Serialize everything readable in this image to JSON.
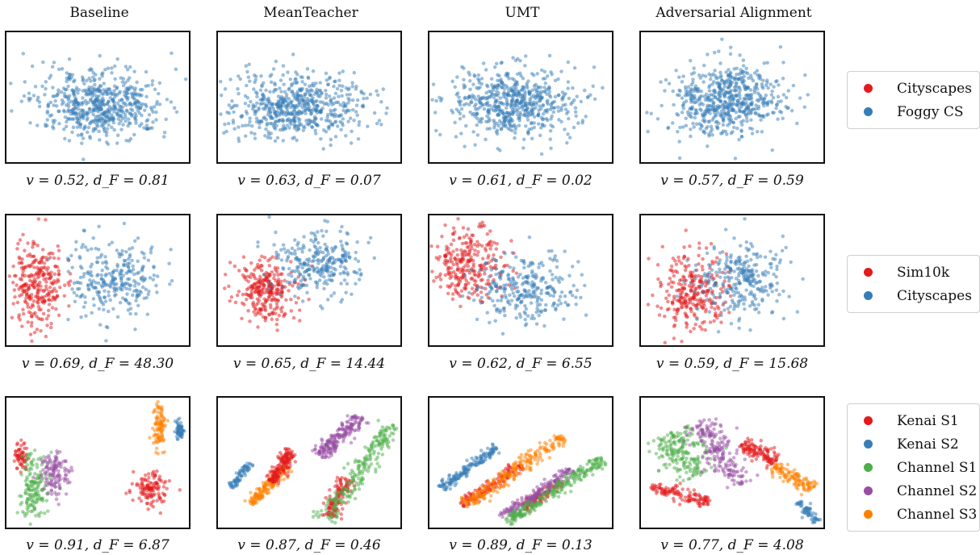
{
  "columns": [
    "Baseline",
    "MeanTeacher",
    "UMT",
    "Adversarial Alignment"
  ],
  "rows": [
    {
      "legend": [
        {
          "name": "Cityscapes",
          "color": "#e41a1c"
        },
        {
          "name": "Foggy CS",
          "color": "#377eb8"
        }
      ],
      "captions": [
        "v = 0.52, d_F = 0.81",
        "v = 0.63, d_F = 0.07",
        "v = 0.61, d_F = 0.02",
        "v = 0.57, d_F = 0.59"
      ]
    },
    {
      "legend": [
        {
          "name": "Sim10k",
          "color": "#e41a1c"
        },
        {
          "name": "Cityscapes",
          "color": "#377eb8"
        }
      ],
      "captions": [
        "v = 0.69, d_F = 48.30",
        "v = 0.65, d_F = 14.44",
        "v = 0.62, d_F = 6.55",
        "v = 0.59, d_F = 15.68"
      ]
    },
    {
      "legend": [
        {
          "name": "Kenai S1",
          "color": "#e41a1c"
        },
        {
          "name": "Kenai S2",
          "color": "#377eb8"
        },
        {
          "name": "Channel S1",
          "color": "#4daf4a"
        },
        {
          "name": "Channel S2",
          "color": "#984ea3"
        },
        {
          "name": "Channel S3",
          "color": "#ff7f00"
        }
      ],
      "captions": [
        "v = 0.91, d_F = 6.87",
        "v = 0.87, d_F = 0.46",
        "v = 0.89, d_F = 0.13",
        "v = 0.77, d_F = 4.08"
      ]
    }
  ],
  "chart_data": {
    "type": "scatter",
    "title": "",
    "xlabel": "",
    "ylabel": "",
    "axes_ticks": false,
    "grid": false,
    "legend_placement": "right of each row",
    "marker_alpha": 0.5,
    "panels": [
      {
        "row": 0,
        "col": 0,
        "clusters": [
          {
            "series": "Cityscapes",
            "cx": 0.52,
            "cy": 0.58,
            "sx": 0.17,
            "sy": 0.11,
            "n": 300
          },
          {
            "series": "Foggy CS",
            "cx": 0.5,
            "cy": 0.52,
            "sx": 0.18,
            "sy": 0.14,
            "n": 300
          }
        ]
      },
      {
        "row": 0,
        "col": 1,
        "clusters": [
          {
            "series": "Cityscapes",
            "cx": 0.45,
            "cy": 0.57,
            "sx": 0.2,
            "sy": 0.14,
            "n": 300
          },
          {
            "series": "Foggy CS",
            "cx": 0.4,
            "cy": 0.57,
            "sx": 0.18,
            "sy": 0.11,
            "n": 300
          }
        ]
      },
      {
        "row": 0,
        "col": 2,
        "clusters": [
          {
            "series": "Cityscapes",
            "cx": 0.46,
            "cy": 0.53,
            "sx": 0.18,
            "sy": 0.14,
            "n": 300
          },
          {
            "series": "Foggy CS",
            "cx": 0.45,
            "cy": 0.55,
            "sx": 0.16,
            "sy": 0.13,
            "n": 300
          }
        ]
      },
      {
        "row": 0,
        "col": 3,
        "clusters": [
          {
            "series": "Cityscapes",
            "cx": 0.45,
            "cy": 0.58,
            "sx": 0.17,
            "sy": 0.12,
            "n": 300
          },
          {
            "series": "Foggy CS",
            "cx": 0.47,
            "cy": 0.47,
            "sx": 0.13,
            "sy": 0.14,
            "n": 300
          }
        ]
      },
      {
        "row": 1,
        "col": 0,
        "clusters": [
          {
            "series": "Sim10k",
            "cx": 0.17,
            "cy": 0.55,
            "sx": 0.07,
            "sy": 0.17,
            "n": 280
          },
          {
            "series": "Cityscapes",
            "cx": 0.6,
            "cy": 0.47,
            "sx": 0.13,
            "sy": 0.15,
            "n": 280
          }
        ]
      },
      {
        "row": 1,
        "col": 1,
        "clusters": [
          {
            "series": "Sim10k",
            "cx": 0.26,
            "cy": 0.58,
            "sx": 0.08,
            "sy": 0.11,
            "n": 280
          },
          {
            "series": "Cityscapes",
            "cx": 0.55,
            "cy": 0.36,
            "sx": 0.12,
            "sy": 0.13,
            "n": 280
          }
        ]
      },
      {
        "row": 1,
        "col": 2,
        "clusters": [
          {
            "series": "Sim10k",
            "cx": 0.22,
            "cy": 0.38,
            "sx": 0.1,
            "sy": 0.13,
            "n": 280
          },
          {
            "series": "Cityscapes",
            "cx": 0.52,
            "cy": 0.58,
            "sx": 0.14,
            "sy": 0.14,
            "n": 280
          }
        ]
      },
      {
        "row": 1,
        "col": 3,
        "clusters": [
          {
            "series": "Sim10k",
            "cx": 0.28,
            "cy": 0.58,
            "sx": 0.1,
            "sy": 0.14,
            "n": 280
          },
          {
            "series": "Cityscapes",
            "cx": 0.56,
            "cy": 0.5,
            "sx": 0.12,
            "sy": 0.14,
            "n": 280
          }
        ]
      },
      {
        "row": 2,
        "col": 0,
        "clusters": [
          {
            "series": "Kenai S1",
            "cx": 0.08,
            "cy": 0.45,
            "sx": 0.02,
            "sy": 0.05,
            "n": 60
          },
          {
            "series": "Kenai S1",
            "cx": 0.79,
            "cy": 0.69,
            "sx": 0.045,
            "sy": 0.06,
            "n": 120
          },
          {
            "series": "Kenai S2",
            "cx": 0.95,
            "cy": 0.25,
            "sx": 0.012,
            "sy": 0.04,
            "n": 60
          },
          {
            "series": "Channel S1",
            "cx": 0.15,
            "cy": 0.69,
            "sx": 0.04,
            "sy": 0.13,
            "n": 160
          },
          {
            "series": "Channel S2",
            "cx": 0.27,
            "cy": 0.59,
            "sx": 0.04,
            "sy": 0.09,
            "n": 120
          },
          {
            "series": "Channel S3",
            "cx": 0.84,
            "cy": 0.2,
            "sx": 0.018,
            "sy": 0.09,
            "n": 100
          }
        ]
      },
      {
        "row": 2,
        "col": 1,
        "lines": [
          {
            "series": "Kenai S2",
            "x1": 0.07,
            "y1": 0.69,
            "x2": 0.18,
            "y2": 0.5,
            "w": 0.012,
            "n": 70
          },
          {
            "series": "Channel S3",
            "x1": 0.18,
            "y1": 0.82,
            "x2": 0.38,
            "y2": 0.53,
            "w": 0.018,
            "n": 150
          },
          {
            "series": "Kenai S1",
            "x1": 0.3,
            "y1": 0.65,
            "x2": 0.4,
            "y2": 0.4,
            "w": 0.022,
            "n": 160
          },
          {
            "series": "Channel S2",
            "x1": 0.56,
            "y1": 0.45,
            "x2": 0.78,
            "y2": 0.14,
            "w": 0.025,
            "n": 200
          },
          {
            "series": "Kenai S1",
            "x1": 0.61,
            "y1": 0.92,
            "x2": 0.7,
            "y2": 0.62,
            "w": 0.025,
            "n": 120
          },
          {
            "series": "Channel S1",
            "x1": 0.59,
            "y1": 0.95,
            "x2": 0.95,
            "y2": 0.2,
            "w": 0.03,
            "n": 220
          }
        ]
      },
      {
        "row": 2,
        "col": 2,
        "lines": [
          {
            "series": "Kenai S2",
            "x1": 0.06,
            "y1": 0.7,
            "x2": 0.37,
            "y2": 0.38,
            "w": 0.018,
            "n": 160
          },
          {
            "series": "Kenai S1",
            "x1": 0.17,
            "y1": 0.83,
            "x2": 0.5,
            "y2": 0.52,
            "w": 0.02,
            "n": 140
          },
          {
            "series": "Channel S3",
            "x1": 0.19,
            "y1": 0.84,
            "x2": 0.73,
            "y2": 0.3,
            "w": 0.026,
            "n": 240
          },
          {
            "series": "Kenai S1",
            "x1": 0.52,
            "y1": 0.85,
            "x2": 0.72,
            "y2": 0.65,
            "w": 0.02,
            "n": 100
          },
          {
            "series": "Channel S2",
            "x1": 0.4,
            "y1": 0.92,
            "x2": 0.78,
            "y2": 0.55,
            "w": 0.02,
            "n": 180
          },
          {
            "series": "Channel S1",
            "x1": 0.42,
            "y1": 0.96,
            "x2": 0.95,
            "y2": 0.47,
            "w": 0.022,
            "n": 240
          }
        ]
      },
      {
        "row": 2,
        "col": 3,
        "lines": [
          {
            "series": "Kenai S1",
            "x1": 0.05,
            "y1": 0.68,
            "x2": 0.38,
            "y2": 0.8,
            "w": 0.025,
            "n": 120
          },
          {
            "series": "Channel S1",
            "x1": 0.14,
            "y1": 0.28,
            "x2": 0.32,
            "y2": 0.6,
            "w": 0.07,
            "n": 200
          },
          {
            "series": "Channel S2",
            "x1": 0.32,
            "y1": 0.18,
            "x2": 0.53,
            "y2": 0.68,
            "w": 0.05,
            "n": 200
          },
          {
            "series": "Kenai S1",
            "x1": 0.56,
            "y1": 0.34,
            "x2": 0.73,
            "y2": 0.5,
            "w": 0.028,
            "n": 120
          },
          {
            "series": "Channel S3",
            "x1": 0.73,
            "y1": 0.53,
            "x2": 0.94,
            "y2": 0.7,
            "w": 0.028,
            "n": 120
          },
          {
            "series": "Kenai S2",
            "x1": 0.87,
            "y1": 0.8,
            "x2": 0.97,
            "y2": 0.96,
            "w": 0.015,
            "n": 60
          }
        ]
      }
    ]
  }
}
